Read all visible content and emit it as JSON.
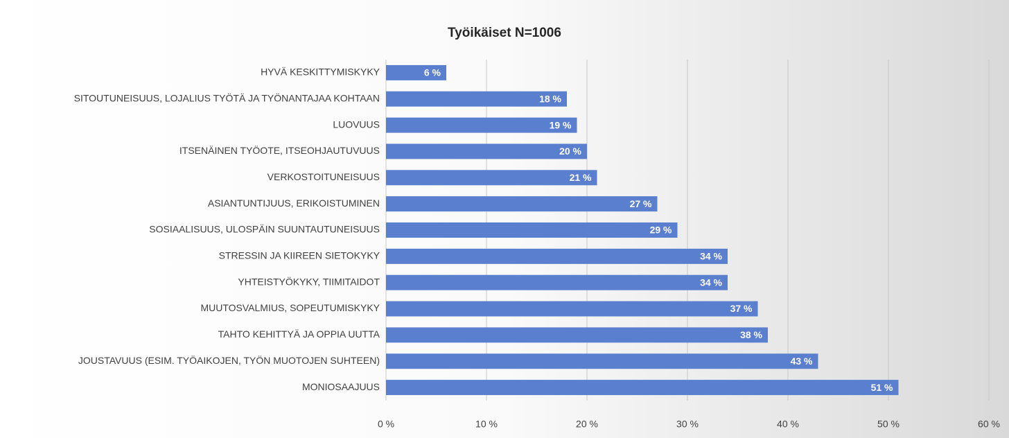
{
  "chart_data": {
    "type": "barh",
    "title": "Työikäiset N=1006",
    "categories": [
      "HYVÄ KESKITTYMISKYKY",
      "SITOUTUNEISUUS, LOJALIUS TYÖTÄ JA TYÖNANTAJAA KOHTAAN",
      "LUOVUUS",
      "ITSENÄINEN TYÖOTE, ITSEOHJAUTUVUUS",
      "VERKOSTOITUNEISUUS",
      "ASIANTUNTIJUUS, ERIKOISTUMINEN",
      "SOSIAALISUUS, ULOSPÄIN SUUNTAUTUNEISUUS",
      "STRESSIN JA KIIREEN SIETOKYKY",
      "YHTEISTYÖKYKY, TIIMITAIDOT",
      "MUUTOSVALMIUS, SOPEUTUMISKYKY",
      "TAHTO KEHITTYÄ JA OPPIA UUTTA",
      "JOUSTAVUUS (ESIM. TYÖAIKOJEN, TYÖN MUOTOJEN SUHTEEN)",
      "MONIOSAAJUUS"
    ],
    "values": [
      6,
      18,
      19,
      20,
      21,
      27,
      29,
      34,
      34,
      37,
      38,
      43,
      51
    ],
    "value_labels": [
      "6 %",
      "18 %",
      "19 %",
      "20 %",
      "21 %",
      "27 %",
      "29 %",
      "34 %",
      "34 %",
      "37 %",
      "38 %",
      "43 %",
      "51 %"
    ],
    "color": "#5b7fcf",
    "xlim": [
      0,
      60
    ],
    "xticks": [
      {
        "value": 0,
        "label": "0 %"
      },
      {
        "value": 10,
        "label": "10 %"
      },
      {
        "value": 20,
        "label": "20 %"
      },
      {
        "value": 30,
        "label": "30 %"
      },
      {
        "value": 40,
        "label": "40 %"
      },
      {
        "value": 50,
        "label": "50 %"
      },
      {
        "value": 60,
        "label": "60 %"
      }
    ],
    "grid": true
  }
}
